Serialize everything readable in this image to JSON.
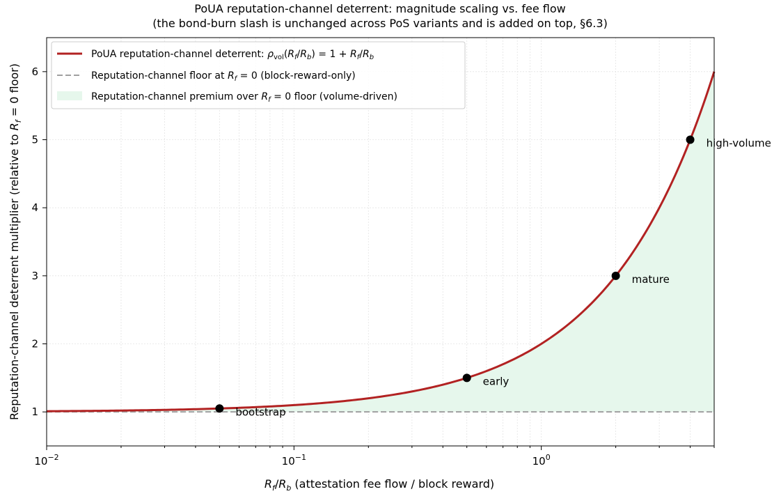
{
  "chart_data": {
    "type": "line",
    "title": "PoUA reputation-channel deterrent: magnitude scaling vs. fee flow",
    "subtitle": "(the bond-burn slash is unchanged across PoS variants and is added on top, §6.3)",
    "xlabel": "R_f/R_b (attestation fee flow / block reward)",
    "ylabel": "Reputation-channel deterrent multiplier (relative to R_f = 0 floor)",
    "xscale": "log",
    "xlim": [
      0.01,
      5
    ],
    "ylim": [
      0.5,
      6.5
    ],
    "x_ticks": [
      {
        "value": 0.01,
        "base": "10",
        "exp": "−2"
      },
      {
        "value": 0.1,
        "base": "10",
        "exp": "−1"
      },
      {
        "value": 1,
        "base": "10",
        "exp": "0"
      }
    ],
    "y_ticks": [
      {
        "value": 1,
        "label": "1"
      },
      {
        "value": 2,
        "label": "2"
      },
      {
        "value": 3,
        "label": "3"
      },
      {
        "value": 4,
        "label": "4"
      },
      {
        "value": 5,
        "label": "5"
      },
      {
        "value": 6,
        "label": "6"
      }
    ],
    "grid": true,
    "legend_position": "top-left",
    "series": [
      {
        "name": "PoUA reputation-channel deterrent: ρ_vol(R_f/R_b) = 1 + R_f/R_b",
        "formula": "1 + x",
        "color": "#b22222"
      },
      {
        "name": "Reputation-channel floor at R_f = 0 (block-reward-only)",
        "y": 1,
        "color": "#a0a0a0",
        "dash": "dashed"
      },
      {
        "name": "Reputation-channel premium over R_f = 0 floor (volume-driven)",
        "fill": "#e6f7ec"
      }
    ],
    "points": [
      {
        "label": "bootstrap",
        "x": 0.05,
        "y": 1.05
      },
      {
        "label": "early",
        "x": 0.5,
        "y": 1.5
      },
      {
        "label": "mature",
        "x": 2,
        "y": 3
      },
      {
        "label": "high-volume",
        "x": 4,
        "y": 5
      }
    ]
  }
}
